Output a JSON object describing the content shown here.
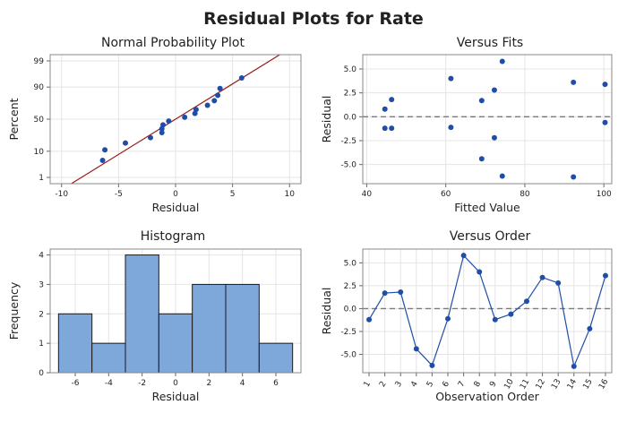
{
  "title": "Residual Plots for Rate",
  "colors": {
    "point": "#1f4ea8",
    "fit_line": "#9c1c1c",
    "bar_fill": "#7ea7da",
    "bar_edge": "#1a1a1a",
    "ref_line": "#7a7a7a"
  },
  "chart_data": [
    {
      "type": "scatter",
      "title": "Normal Probability Plot",
      "xlabel": "Residual",
      "ylabel": "Percent",
      "xlim": [
        -11,
        11
      ],
      "xticks": [
        -10,
        -5,
        0,
        5,
        10
      ],
      "xtick_labels": [
        "-10",
        "-5",
        "0",
        "5",
        "10"
      ],
      "yticks": [
        1,
        10,
        50,
        90,
        99
      ],
      "ytick_labels": [
        "1",
        "10",
        "50",
        "90",
        "99"
      ],
      "yscale": "normal-probability",
      "fit_line": {
        "mean": 0,
        "sd": 3.55,
        "label": "normal reference line"
      },
      "points": [
        {
          "x": -6.4,
          "y": 5.0
        },
        {
          "x": -6.2,
          "y": 11.0
        },
        {
          "x": -4.4,
          "y": 17.0
        },
        {
          "x": -2.2,
          "y": 23.0
        },
        {
          "x": -1.2,
          "y": 29.5
        },
        {
          "x": -1.2,
          "y": 35.0
        },
        {
          "x": -1.1,
          "y": 41.0
        },
        {
          "x": -0.6,
          "y": 47.0
        },
        {
          "x": 0.8,
          "y": 53.0
        },
        {
          "x": 1.7,
          "y": 59.0
        },
        {
          "x": 1.8,
          "y": 65.0
        },
        {
          "x": 2.8,
          "y": 71.0
        },
        {
          "x": 3.4,
          "y": 77.0
        },
        {
          "x": 3.7,
          "y": 83.0
        },
        {
          "x": 3.9,
          "y": 89.0
        },
        {
          "x": 5.8,
          "y": 95.0
        }
      ]
    },
    {
      "type": "scatter",
      "title": "Versus Fits",
      "xlabel": "Fitted Value",
      "ylabel": "Residual",
      "xlim": [
        39,
        102
      ],
      "ylim": [
        -7,
        6.5
      ],
      "xticks": [
        40,
        60,
        80,
        100
      ],
      "xtick_labels": [
        "40",
        "60",
        "80",
        "100"
      ],
      "yticks": [
        -5,
        -2.5,
        0,
        2.5,
        5
      ],
      "ytick_labels": [
        "-5.0",
        "-2.5",
        "0.0",
        "2.5",
        "5.0"
      ],
      "reference_line": 0,
      "points": [
        {
          "x": 44.6,
          "y": 0.8
        },
        {
          "x": 44.6,
          "y": -1.2
        },
        {
          "x": 46.3,
          "y": 1.8
        },
        {
          "x": 46.3,
          "y": -1.2
        },
        {
          "x": 61.3,
          "y": 4.0
        },
        {
          "x": 61.3,
          "y": -1.1
        },
        {
          "x": 69.1,
          "y": 1.7
        },
        {
          "x": 69.1,
          "y": -4.4
        },
        {
          "x": 72.3,
          "y": 2.8
        },
        {
          "x": 72.3,
          "y": -2.2
        },
        {
          "x": 74.3,
          "y": 5.8
        },
        {
          "x": 74.3,
          "y": -6.2
        },
        {
          "x": 92.3,
          "y": 3.6
        },
        {
          "x": 92.3,
          "y": -6.3
        },
        {
          "x": 100.3,
          "y": 3.4
        },
        {
          "x": 100.3,
          "y": -0.6
        }
      ]
    },
    {
      "type": "bar",
      "title": "Histogram",
      "xlabel": "Residual",
      "ylabel": "Frequency",
      "xlim": [
        -7.5,
        7.5
      ],
      "ylim": [
        0,
        4.2
      ],
      "xticks": [
        -6,
        -4,
        -2,
        0,
        2,
        4,
        6
      ],
      "xtick_labels": [
        "-6",
        "-4",
        "-2",
        "0",
        "2",
        "4",
        "6"
      ],
      "yticks": [
        0,
        1,
        2,
        3,
        4
      ],
      "ytick_labels": [
        "0",
        "1",
        "2",
        "3",
        "4"
      ],
      "bin_width": 2,
      "bin_centers": [
        -6,
        -4,
        -2,
        0,
        2,
        4,
        6
      ],
      "values": [
        2,
        1,
        4,
        2,
        3,
        3,
        1
      ]
    },
    {
      "type": "line",
      "title": "Versus Order",
      "xlabel": "Observation Order",
      "ylabel": "Residual",
      "xlim": [
        0.6,
        16.4
      ],
      "ylim": [
        -7,
        6.5
      ],
      "x": [
        1,
        2,
        3,
        4,
        5,
        6,
        7,
        8,
        9,
        10,
        11,
        12,
        13,
        14,
        15,
        16
      ],
      "xtick_labels": [
        "1",
        "2",
        "3",
        "4",
        "5",
        "6",
        "7",
        "8",
        "9",
        "10",
        "11",
        "12",
        "13",
        "14",
        "15",
        "16"
      ],
      "yticks": [
        -5,
        -2.5,
        0,
        2.5,
        5
      ],
      "ytick_labels": [
        "-5.0",
        "-2.5",
        "0.0",
        "2.5",
        "5.0"
      ],
      "reference_line": 0,
      "values": [
        -1.2,
        1.7,
        1.8,
        -4.4,
        -6.2,
        -1.1,
        5.8,
        4.0,
        -1.2,
        -0.6,
        0.8,
        3.4,
        2.8,
        -6.3,
        -2.2,
        3.6
      ]
    }
  ]
}
